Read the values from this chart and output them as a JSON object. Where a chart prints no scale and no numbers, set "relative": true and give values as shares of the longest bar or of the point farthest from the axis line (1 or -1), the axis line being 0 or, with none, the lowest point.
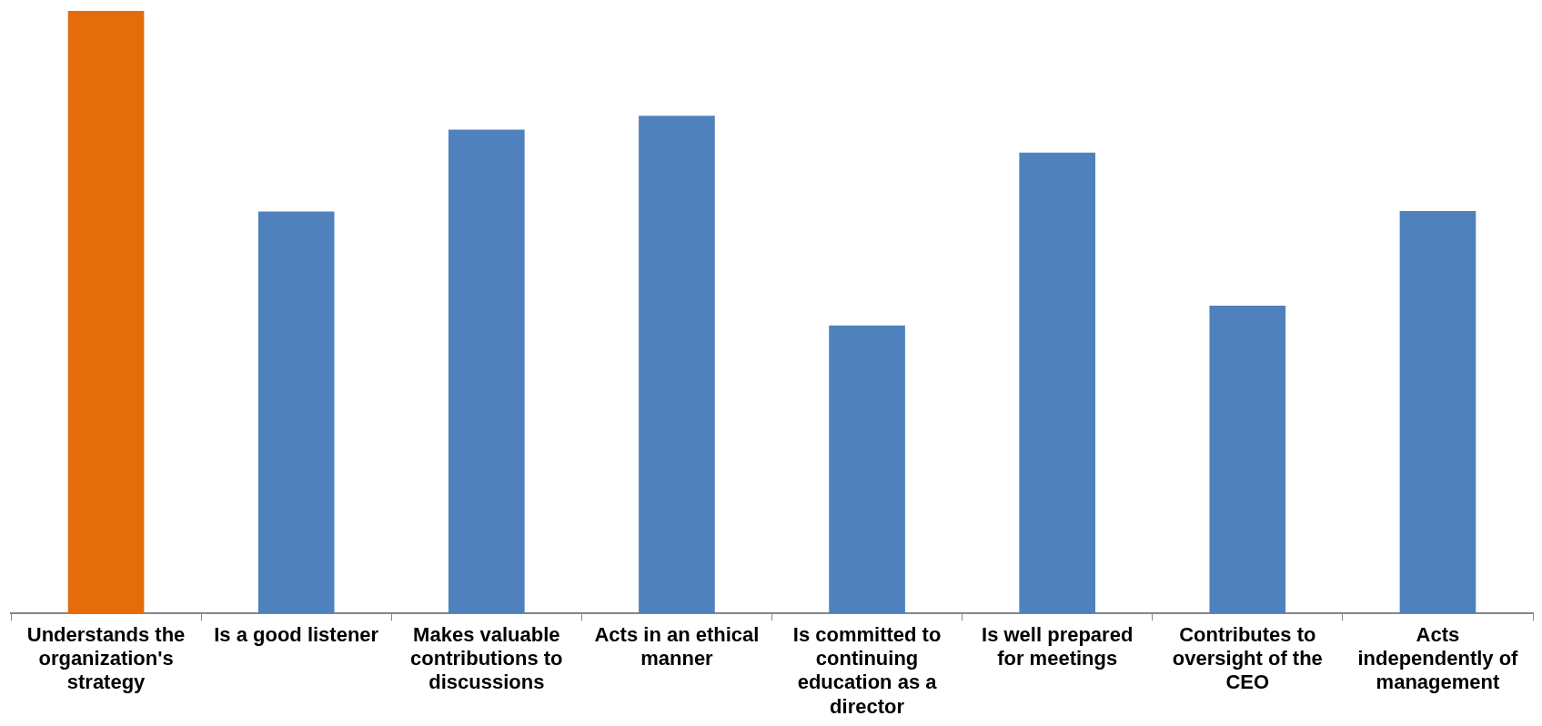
{
  "chart_data": {
    "type": "bar",
    "relative": true,
    "categories": [
      "Understands the organization's strategy",
      "Is a good listener",
      "Makes valuable contributions to discussions",
      "Acts in an ethical manner",
      "Is committed to continuing education as a director",
      "Is well prepared for meetings",
      "Contributes to oversight of the CEO",
      "Acts independently of management"
    ],
    "values": [
      1,
      0.667,
      0.803,
      0.826,
      0.478,
      0.765,
      0.511,
      0.668
    ],
    "colors": [
      "#e46c0a",
      "#4f81bd",
      "#4f81bd",
      "#4f81bd",
      "#4f81bd",
      "#4f81bd",
      "#4f81bd",
      "#4f81bd"
    ],
    "grid": false,
    "legend": false
  }
}
